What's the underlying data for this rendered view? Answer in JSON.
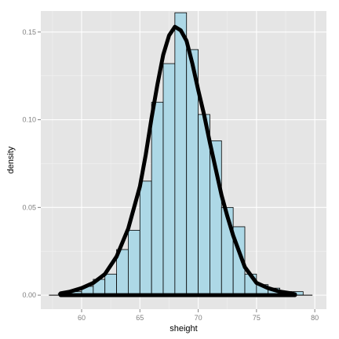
{
  "chart_data": {
    "type": "bar",
    "title": "",
    "xlabel": "sheight",
    "ylabel": "density",
    "xlim": [
      56.5,
      81
    ],
    "ylim": [
      -0.008,
      0.162
    ],
    "x_ticks": [
      60,
      65,
      70,
      75,
      80
    ],
    "x_tick_labels": [
      "60",
      "65",
      "70",
      "75",
      "80"
    ],
    "y_ticks": [
      0.0,
      0.05,
      0.1,
      0.15
    ],
    "y_tick_labels": [
      "0.00",
      "0.05",
      "0.10",
      "0.15"
    ],
    "grid": true,
    "legend": "none",
    "panel_color": "#e5e5e5",
    "grid_color": "#ffffff",
    "bar_fill": "#add8e6",
    "bar_stroke": "#000000",
    "curve_color": "#000000",
    "bin_width": 1,
    "bins": [
      {
        "x0": 58,
        "x1": 59,
        "density": 0.001
      },
      {
        "x0": 59,
        "x1": 60,
        "density": 0.002
      },
      {
        "x0": 60,
        "x1": 61,
        "density": 0.005
      },
      {
        "x0": 61,
        "x1": 62,
        "density": 0.009
      },
      {
        "x0": 62,
        "x1": 63,
        "density": 0.012
      },
      {
        "x0": 63,
        "x1": 64,
        "density": 0.026
      },
      {
        "x0": 64,
        "x1": 65,
        "density": 0.037
      },
      {
        "x0": 65,
        "x1": 66,
        "density": 0.065
      },
      {
        "x0": 66,
        "x1": 67,
        "density": 0.11
      },
      {
        "x0": 67,
        "x1": 68,
        "density": 0.132
      },
      {
        "x0": 68,
        "x1": 69,
        "density": 0.161
      },
      {
        "x0": 69,
        "x1": 70,
        "density": 0.14
      },
      {
        "x0": 70,
        "x1": 71,
        "density": 0.103
      },
      {
        "x0": 71,
        "x1": 72,
        "density": 0.088
      },
      {
        "x0": 72,
        "x1": 73,
        "density": 0.05
      },
      {
        "x0": 73,
        "x1": 74,
        "density": 0.039
      },
      {
        "x0": 74,
        "x1": 75,
        "density": 0.012
      },
      {
        "x0": 75,
        "x1": 76,
        "density": 0.006
      },
      {
        "x0": 76,
        "x1": 77,
        "density": 0.004
      },
      {
        "x0": 77,
        "x1": 78,
        "density": 0.002
      },
      {
        "x0": 78,
        "x1": 79,
        "density": 0.002
      }
    ],
    "baseline_segment": [
      57.2,
      79.8
    ],
    "density_curve": {
      "x": [
        58.2,
        59,
        60,
        61,
        62,
        63,
        64,
        65,
        65.5,
        66,
        66.5,
        67,
        67.5,
        68,
        68.5,
        69,
        69.5,
        70,
        70.5,
        71,
        71.5,
        72,
        72.5,
        73,
        74,
        75,
        76,
        77,
        78,
        78.3
      ],
      "y": [
        0.001,
        0.002,
        0.004,
        0.007,
        0.012,
        0.022,
        0.038,
        0.062,
        0.08,
        0.101,
        0.12,
        0.137,
        0.148,
        0.153,
        0.151,
        0.145,
        0.132,
        0.117,
        0.103,
        0.087,
        0.072,
        0.057,
        0.045,
        0.034,
        0.016,
        0.007,
        0.004,
        0.002,
        0.001,
        0.0005
      ]
    },
    "rug_range": [
      58.2,
      78.3
    ]
  }
}
